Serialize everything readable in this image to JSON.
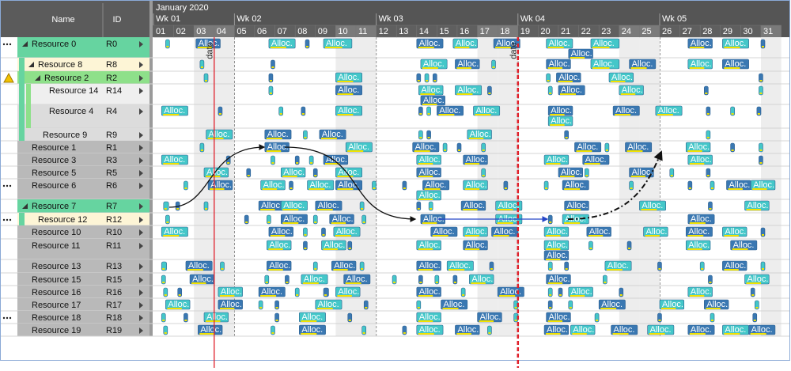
{
  "header": {
    "name": "Name",
    "id": "ID",
    "month": "January 2020",
    "weeks": [
      {
        "label": "Wk 01",
        "day": 1
      },
      {
        "label": "Wk 02",
        "day": 5
      },
      {
        "label": "Wk 03",
        "day": 12
      },
      {
        "label": "Wk 04",
        "day": 19
      },
      {
        "label": "Wk 05",
        "day": 26
      }
    ],
    "days": [
      "01",
      "02",
      "03",
      "04",
      "05",
      "06",
      "07",
      "08",
      "09",
      "10",
      "11",
      "12",
      "13",
      "14",
      "15",
      "16",
      "17",
      "18",
      "19",
      "20",
      "21",
      "22",
      "23",
      "24",
      "25",
      "26",
      "27",
      "28",
      "29",
      "30",
      "31"
    ]
  },
  "allocation_label": "Alloc.",
  "markers": [
    {
      "label": "date",
      "day": 4
    },
    {
      "label": "date",
      "day": 19
    }
  ],
  "rows": [
    {
      "name": "Resource 0",
      "id": "R0",
      "allocations": [
        [
          1.6,
          0.3
        ],
        [
          3.1,
          1.2
        ],
        [
          6.7,
          1.3
        ],
        [
          8.5,
          0.3
        ],
        [
          9.4,
          1.4
        ],
        [
          14,
          1.3
        ],
        [
          15.8,
          1.2
        ],
        [
          17.8,
          1.3
        ],
        [
          20.4,
          1.3
        ],
        [
          21.5,
          1.2,
          1
        ],
        [
          22.6,
          1.4
        ],
        [
          27.4,
          1.2
        ],
        [
          29.1,
          1.3
        ],
        [
          31,
          0.3
        ]
      ]
    },
    {
      "name": "Resource 8",
      "id": "R8",
      "allocations": [
        [
          3.3,
          0.3
        ],
        [
          6.8,
          0.3
        ],
        [
          14.2,
          1.3
        ],
        [
          15.9,
          1.2
        ],
        [
          17.7,
          0.3
        ],
        [
          20.4,
          1.2
        ],
        [
          22.6,
          1.4
        ],
        [
          24.5,
          1.3
        ],
        [
          27.4,
          1.2
        ],
        [
          29.1,
          1.3
        ]
      ]
    },
    {
      "name": "Resource 2",
      "id": "R2",
      "allocations": [
        [
          3.5,
          0.3
        ],
        [
          6.7,
          0.3
        ],
        [
          10,
          1.3
        ],
        [
          14,
          0.3
        ],
        [
          14.4,
          0.3
        ],
        [
          14.8,
          0.3
        ],
        [
          20.4,
          0.3
        ],
        [
          20.9,
          1.2
        ],
        [
          23.5,
          1.2
        ],
        [
          30.9,
          0.3
        ]
      ]
    },
    {
      "name": "Resource 14",
      "id": "R14",
      "allocations": [
        [
          6.7,
          0.3
        ],
        [
          10,
          1.3
        ],
        [
          14.1,
          1.2
        ],
        [
          14.2,
          1.2,
          1
        ],
        [
          15.9,
          1.3
        ],
        [
          17.5,
          0.3
        ],
        [
          20.5,
          0.3
        ],
        [
          21,
          1.3
        ],
        [
          24,
          1.2
        ],
        [
          28.2,
          0.3
        ],
        [
          30.9,
          0.3
        ]
      ]
    },
    {
      "name": "Resource 4",
      "id": "R4",
      "allocations": [
        [
          1.4,
          1.3
        ],
        [
          4.2,
          0.3
        ],
        [
          7.2,
          0.3
        ],
        [
          8.3,
          0.3
        ],
        [
          10,
          1.3
        ],
        [
          14.1,
          0.3
        ],
        [
          14.5,
          0.3
        ],
        [
          15,
          1.3
        ],
        [
          16.8,
          1.3
        ],
        [
          20.5,
          1.2
        ],
        [
          20.5,
          1.2,
          1
        ],
        [
          23.7,
          1.3
        ],
        [
          25.8,
          1.3
        ],
        [
          28.3,
          0.3
        ],
        [
          29.5,
          0.4
        ],
        [
          30.8,
          0.4
        ]
      ]
    },
    {
      "name": "Resource 9",
      "id": "R9",
      "allocations": [
        [
          3.6,
          1.3
        ],
        [
          6.5,
          1.3
        ],
        [
          8.4,
          0.3
        ],
        [
          9.2,
          1.3
        ],
        [
          14.1,
          0.3
        ],
        [
          14.5,
          0.3
        ],
        [
          16.5,
          1.2
        ],
        [
          21.3,
          0.3
        ],
        [
          28.3,
          0.3
        ]
      ]
    },
    {
      "name": "Resource 1",
      "id": "R1",
      "allocations": [
        [
          3.3,
          0.3
        ],
        [
          6.5,
          1.2
        ],
        [
          10.5,
          1.3
        ],
        [
          13.8,
          1.3
        ],
        [
          15.3,
          0.3
        ],
        [
          16,
          0.3
        ],
        [
          17.2,
          0.3
        ],
        [
          21.8,
          1.3
        ],
        [
          23.3,
          0.3
        ],
        [
          24.3,
          1.3
        ],
        [
          27.3,
          1.2
        ],
        [
          29.5,
          0.3
        ],
        [
          30.9,
          0.3
        ]
      ]
    },
    {
      "name": "Resource 3",
      "id": "R3",
      "allocations": [
        [
          1.4,
          1.3
        ],
        [
          4.6,
          0.3
        ],
        [
          6.8,
          0.3
        ],
        [
          8,
          0.3
        ],
        [
          8.7,
          0.3
        ],
        [
          9.4,
          1.2
        ],
        [
          14,
          1.2
        ],
        [
          16.3,
          1.2
        ],
        [
          20.3,
          1.2
        ],
        [
          22.2,
          1.3
        ],
        [
          27.4,
          1.2
        ],
        [
          30.9,
          0.3
        ]
      ]
    },
    {
      "name": "Resource 5",
      "id": "R5",
      "allocations": [
        [
          3.5,
          1.2
        ],
        [
          5.6,
          0.3
        ],
        [
          7.3,
          1.2
        ],
        [
          8.9,
          0.3
        ],
        [
          10,
          1.3
        ],
        [
          14,
          1.2
        ],
        [
          17.2,
          0.3
        ],
        [
          21,
          1.2
        ],
        [
          22.3,
          0.3
        ],
        [
          24.5,
          1.2
        ],
        [
          26.5,
          0.3
        ],
        [
          28.3,
          0.3
        ]
      ]
    },
    {
      "name": "Resource 6",
      "id": "R6",
      "allocations": [
        [
          2.5,
          0.3
        ],
        [
          3.7,
          1.2
        ],
        [
          6.3,
          1.2
        ],
        [
          7.7,
          0.3
        ],
        [
          8.6,
          1.3
        ],
        [
          10,
          1.3
        ],
        [
          11.8,
          0.3
        ],
        [
          13.3,
          0.3
        ],
        [
          14,
          1.2,
          1
        ],
        [
          14.3,
          1.3
        ],
        [
          16.3,
          1.2
        ],
        [
          18.3,
          0.3
        ],
        [
          20.3,
          0.3
        ],
        [
          21.2,
          1.3
        ],
        [
          24.5,
          0.3
        ],
        [
          27.4,
          0.3
        ],
        [
          28.5,
          0.3
        ],
        [
          29.3,
          1.2
        ],
        [
          30.5,
          1.2
        ]
      ]
    },
    {
      "name": "Resource 7",
      "id": "R7",
      "allocations": [
        [
          1.5,
          0.5
        ],
        [
          2.1,
          0.3
        ],
        [
          3.5,
          0.3
        ],
        [
          6.2,
          1.2
        ],
        [
          7.3,
          1.3
        ],
        [
          9,
          1.3
        ],
        [
          11.2,
          0.3
        ],
        [
          14,
          0.3
        ],
        [
          14.6,
          0.3
        ],
        [
          16.2,
          1.2
        ],
        [
          17.9,
          1.3
        ],
        [
          21.3,
          1.2
        ],
        [
          25,
          1.3
        ],
        [
          28.4,
          0.3
        ],
        [
          30.2,
          1.2
        ]
      ]
    },
    {
      "name": "Resource 12",
      "id": "R12",
      "allocations": [
        [
          1.6,
          0.3
        ],
        [
          5.5,
          0.3
        ],
        [
          6.6,
          0.3
        ],
        [
          7.3,
          1.3
        ],
        [
          8.9,
          0.3
        ],
        [
          9.7,
          1.2
        ],
        [
          11.3,
          0.3
        ],
        [
          14.2,
          1.2
        ],
        [
          17.9,
          1.3
        ],
        [
          20.5,
          0.3
        ],
        [
          21.2,
          1.3
        ],
        [
          27.4,
          1.3
        ]
      ]
    },
    {
      "name": "Resource 10",
      "id": "R10",
      "allocations": [
        [
          1.4,
          1.3
        ],
        [
          6.7,
          1.2
        ],
        [
          8.4,
          0.3
        ],
        [
          9.3,
          0.3
        ],
        [
          9.9,
          1.3
        ],
        [
          14.7,
          1.3
        ],
        [
          16.3,
          1.2
        ],
        [
          17.7,
          1.3
        ],
        [
          20.3,
          1.2
        ],
        [
          22.4,
          1.2
        ],
        [
          25.2,
          1.2
        ],
        [
          27.3,
          1.3
        ],
        [
          29.1,
          1.2
        ],
        [
          31,
          0.3
        ]
      ]
    },
    {
      "name": "Resource 11",
      "id": "R11",
      "allocations": [
        [
          6.6,
          1.2
        ],
        [
          8.4,
          0.3
        ],
        [
          9.3,
          1.2
        ],
        [
          10.6,
          0.3
        ],
        [
          14,
          1.2
        ],
        [
          16.3,
          1.2
        ],
        [
          20.3,
          1.2
        ],
        [
          20.3,
          1.2,
          1
        ],
        [
          22.5,
          0.3
        ],
        [
          24.4,
          0.3
        ],
        [
          27.3,
          1.2
        ],
        [
          29.5,
          1.3
        ]
      ]
    },
    {
      "name": "Resource 13",
      "id": "R13",
      "allocations": [
        [
          1.4,
          0.5
        ],
        [
          2.6,
          1.3
        ],
        [
          4.3,
          0.3
        ],
        [
          6.6,
          1.2
        ],
        [
          8.9,
          0.3
        ],
        [
          9.8,
          1.2
        ],
        [
          11.2,
          0.3
        ],
        [
          14,
          1.2
        ],
        [
          15.5,
          1.3
        ],
        [
          17.6,
          0.3
        ],
        [
          20.5,
          0.3
        ],
        [
          21.3,
          0.3
        ],
        [
          23.3,
          1.3
        ],
        [
          25.9,
          0.3
        ],
        [
          28,
          0.3
        ],
        [
          29.1,
          1.2
        ],
        [
          31,
          0.3
        ]
      ]
    },
    {
      "name": "Resource 15",
      "id": "R15",
      "allocations": [
        [
          1.4,
          0.3
        ],
        [
          2.8,
          1.2
        ],
        [
          6.5,
          0.3
        ],
        [
          7.5,
          0.3
        ],
        [
          8.3,
          1.3
        ],
        [
          10.4,
          1.3
        ],
        [
          12.8,
          0.3
        ],
        [
          14.1,
          0.3
        ],
        [
          14.9,
          0.3
        ],
        [
          15.8,
          0.3
        ],
        [
          16.6,
          1.2
        ],
        [
          20.4,
          1.2
        ],
        [
          23.2,
          0.3
        ],
        [
          28.4,
          0.3
        ],
        [
          30.2,
          1.2
        ]
      ]
    },
    {
      "name": "Resource 16",
      "id": "R16",
      "allocations": [
        [
          1.5,
          0.3
        ],
        [
          2.2,
          0.3
        ],
        [
          4.2,
          1.2
        ],
        [
          6.2,
          1.3
        ],
        [
          8,
          0.3
        ],
        [
          9.4,
          0.5
        ],
        [
          10,
          1.2
        ],
        [
          14,
          1.2
        ],
        [
          16.2,
          0.3
        ],
        [
          18,
          1.3
        ],
        [
          20.5,
          0.3
        ],
        [
          21,
          0.3
        ],
        [
          21.5,
          1.2
        ],
        [
          24,
          0.3
        ],
        [
          27.4,
          1.2
        ],
        [
          30.5,
          0.3
        ]
      ]
    },
    {
      "name": "Resource 17",
      "id": "R17",
      "allocations": [
        [
          1.6,
          1.2
        ],
        [
          4.2,
          1.2
        ],
        [
          6.2,
          0.3
        ],
        [
          7,
          0.3
        ],
        [
          9,
          1.3
        ],
        [
          11.4,
          0.3
        ],
        [
          14,
          0.3
        ],
        [
          15.2,
          1.3
        ],
        [
          18.8,
          0.3
        ],
        [
          20.5,
          0.3
        ],
        [
          21.5,
          0.3
        ],
        [
          23,
          1.3
        ],
        [
          26,
          1.2
        ],
        [
          28.2,
          1.2
        ],
        [
          30.7,
          0.3
        ]
      ]
    },
    {
      "name": "Resource 18",
      "id": "R18",
      "allocations": [
        [
          1.4,
          0.3
        ],
        [
          2.5,
          0.3
        ],
        [
          3.5,
          1.2
        ],
        [
          7,
          0.3
        ],
        [
          8.2,
          1.3
        ],
        [
          10.6,
          0.3
        ],
        [
          14,
          1.2
        ],
        [
          17,
          1.2
        ],
        [
          18.8,
          0.3
        ],
        [
          20.4,
          1.2
        ],
        [
          22.8,
          0.3
        ],
        [
          25.9,
          0.3
        ],
        [
          28.5,
          0.3
        ],
        [
          30.6,
          0.3
        ]
      ]
    },
    {
      "name": "Resource 19",
      "id": "R19",
      "allocations": [
        [
          1.5,
          0.3
        ],
        [
          3.2,
          1.2
        ],
        [
          6.8,
          0.3
        ],
        [
          8.2,
          1.3
        ],
        [
          11.3,
          0.3
        ],
        [
          13.3,
          0.3
        ],
        [
          14,
          1.3
        ],
        [
          15.9,
          1.2
        ],
        [
          17.5,
          0.3
        ],
        [
          20.3,
          1.2
        ],
        [
          21.6,
          1.2
        ],
        [
          23.6,
          1.3
        ],
        [
          25.4,
          1.3
        ],
        [
          27.4,
          1.3
        ],
        [
          29.1,
          1.3
        ],
        [
          30.4,
          1.3
        ]
      ]
    }
  ]
}
